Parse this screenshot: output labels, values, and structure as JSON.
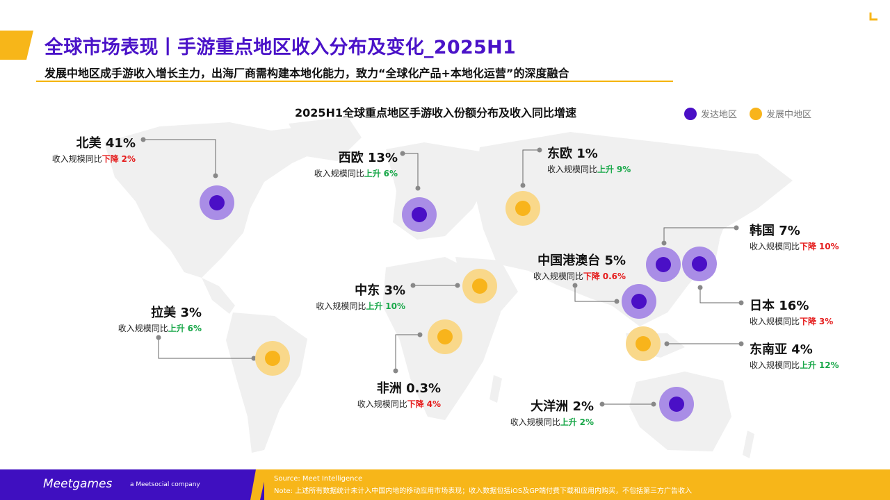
{
  "header": {
    "title": "全球市场表现丨手游重点地区收入分布及变化_2025H1",
    "subtitle": "发展中地区成手游收入增长主力，出海厂商需构建本地化能力，致力“全球化产品+本地化运营”的深度融合"
  },
  "chart_title": "2025H1全球重点地区手游收入份额分布及收入同比增速",
  "legend": {
    "developed": "发达地区",
    "developing": "发展中地区"
  },
  "colors": {
    "developed": "#4a0fc6",
    "developed_ring": "#a98de6",
    "developing": "#f8b41b",
    "developing_ring": "#f9d88a",
    "up": "#1aa84a",
    "down": "#e51d1d",
    "brand_purple": "#3f0fc0",
    "brand_yellow": "#f7b619"
  },
  "chart_data": {
    "type": "table",
    "columns": [
      "region",
      "share",
      "yoy_prefix",
      "yoy_direction",
      "yoy_change",
      "type"
    ],
    "regions": [
      {
        "name": "北美",
        "share": "41%",
        "prefix": "收入规模同比",
        "dir": "下降",
        "change": "2%",
        "type": "developed"
      },
      {
        "name": "西欧",
        "share": "13%",
        "prefix": "收入规模同比",
        "dir": "上升",
        "change": "6%",
        "type": "developed"
      },
      {
        "name": "东欧",
        "share": "1%",
        "prefix": "收入规模同比",
        "dir": "上升",
        "change": "9%",
        "type": "developing"
      },
      {
        "name": "韩国",
        "share": "7%",
        "prefix": "收入规模同比",
        "dir": "下降",
        "change": "10%",
        "type": "developed"
      },
      {
        "name": "中国港澳台",
        "share": "5%",
        "prefix": "收入规模同比",
        "dir": "下降",
        "change": "0.6%",
        "type": "developed"
      },
      {
        "name": "中东",
        "share": "3%",
        "prefix": "收入规模同比",
        "dir": "上升",
        "change": "10%",
        "type": "developing"
      },
      {
        "name": "日本",
        "share": "16%",
        "prefix": "收入规模同比",
        "dir": "下降",
        "change": "3%",
        "type": "developed"
      },
      {
        "name": "拉美",
        "share": "3%",
        "prefix": "收入规模同比",
        "dir": "上升",
        "change": "6%",
        "type": "developing"
      },
      {
        "name": "东南亚",
        "share": "4%",
        "prefix": "收入规模同比",
        "dir": "上升",
        "change": "12%",
        "type": "developing"
      },
      {
        "name": "非洲",
        "share": "0.3%",
        "prefix": "收入规模同比",
        "dir": "下降",
        "change": "4%",
        "type": "developing"
      },
      {
        "name": "大洋洲",
        "share": "2%",
        "prefix": "收入规模同比",
        "dir": "上升",
        "change": "2%",
        "type": "developed"
      }
    ]
  },
  "footer": {
    "logo": "Meetgames",
    "tagline": "a Meetsocial company",
    "source": "Source: Meet Intelligence",
    "note": "Note: 上述所有数据统计未计入中国内地的移动应用市场表现；收入数据包括iOS及GP端付费下载和应用内购买，不包括第三方广告收入"
  }
}
